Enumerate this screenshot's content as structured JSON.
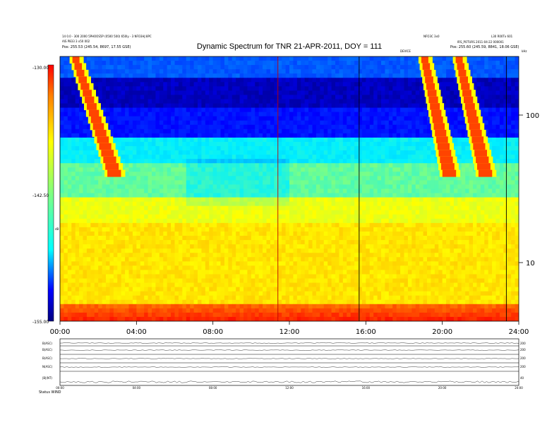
{
  "header": {
    "title": "Dynamic Spectrum for TNR 21-APR-2011, DOY = 111",
    "left_lines": [
      "14 0.0 - 300 2000 5PHOOS5P (0500 500) 650ly - 3 NFO3HJ 8PC",
      "AIS P833 3 x50 002",
      "Pos: 255.53 (245.54, 8697, 17.55 GSE)"
    ],
    "right_lines": [
      "NFO3C 3x0",
      "L30 R00Tx 601",
      "IRS_POTURS 2011-04-22 000001",
      "Pos: 255.60 (245.59, 8841, 18.06 GSE)"
    ],
    "mid_label": "DEVICE",
    "corner_label": "kHz"
  },
  "chart_data": {
    "type": "heatmap",
    "title": "Dynamic Spectrum for TNR 21-APR-2011, DOY = 111",
    "x_ticks": [
      "00:00",
      "04:00",
      "08:00",
      "12:00",
      "16:00",
      "20:00",
      "24:00"
    ],
    "x_range_hours": [
      0,
      24
    ],
    "y_scale": "log",
    "y_range_khz": [
      4,
      250
    ],
    "y_ticks": [
      "100",
      "10"
    ],
    "colorbar": {
      "ticks": [
        "-130.00",
        "-142.50",
        "-155.00"
      ],
      "range": [
        -155,
        -130
      ],
      "label": "dB"
    },
    "bursts": [
      {
        "start_h": 0.65,
        "end_h": 2.8
      },
      {
        "start_h": 18.9,
        "end_h": 20.2
      },
      {
        "start_h": 20.7,
        "end_h": 22.1
      }
    ],
    "vertical_lines_h": [
      11.4,
      15.65,
      23.35
    ]
  },
  "bottom_panel": {
    "left_labels": [
      "B(ASC)",
      "B(ASC)",
      "B(ASC)",
      "N(ASC)",
      "|B|(NT)"
    ],
    "right_labels": [
      "200",
      "200",
      "200",
      "200",
      "40"
    ],
    "x_ticks": [
      "00:00",
      "04:00",
      "08:00",
      "12:00",
      "16:00",
      "20:00",
      "24:00"
    ],
    "footer": "Status  WIND"
  },
  "colors": {
    "cmap": [
      "#00007f",
      "#0000ff",
      "#0080ff",
      "#00e0ff",
      "#80ff80",
      "#ffff00",
      "#ff8000",
      "#ff0000",
      "#800000"
    ]
  }
}
